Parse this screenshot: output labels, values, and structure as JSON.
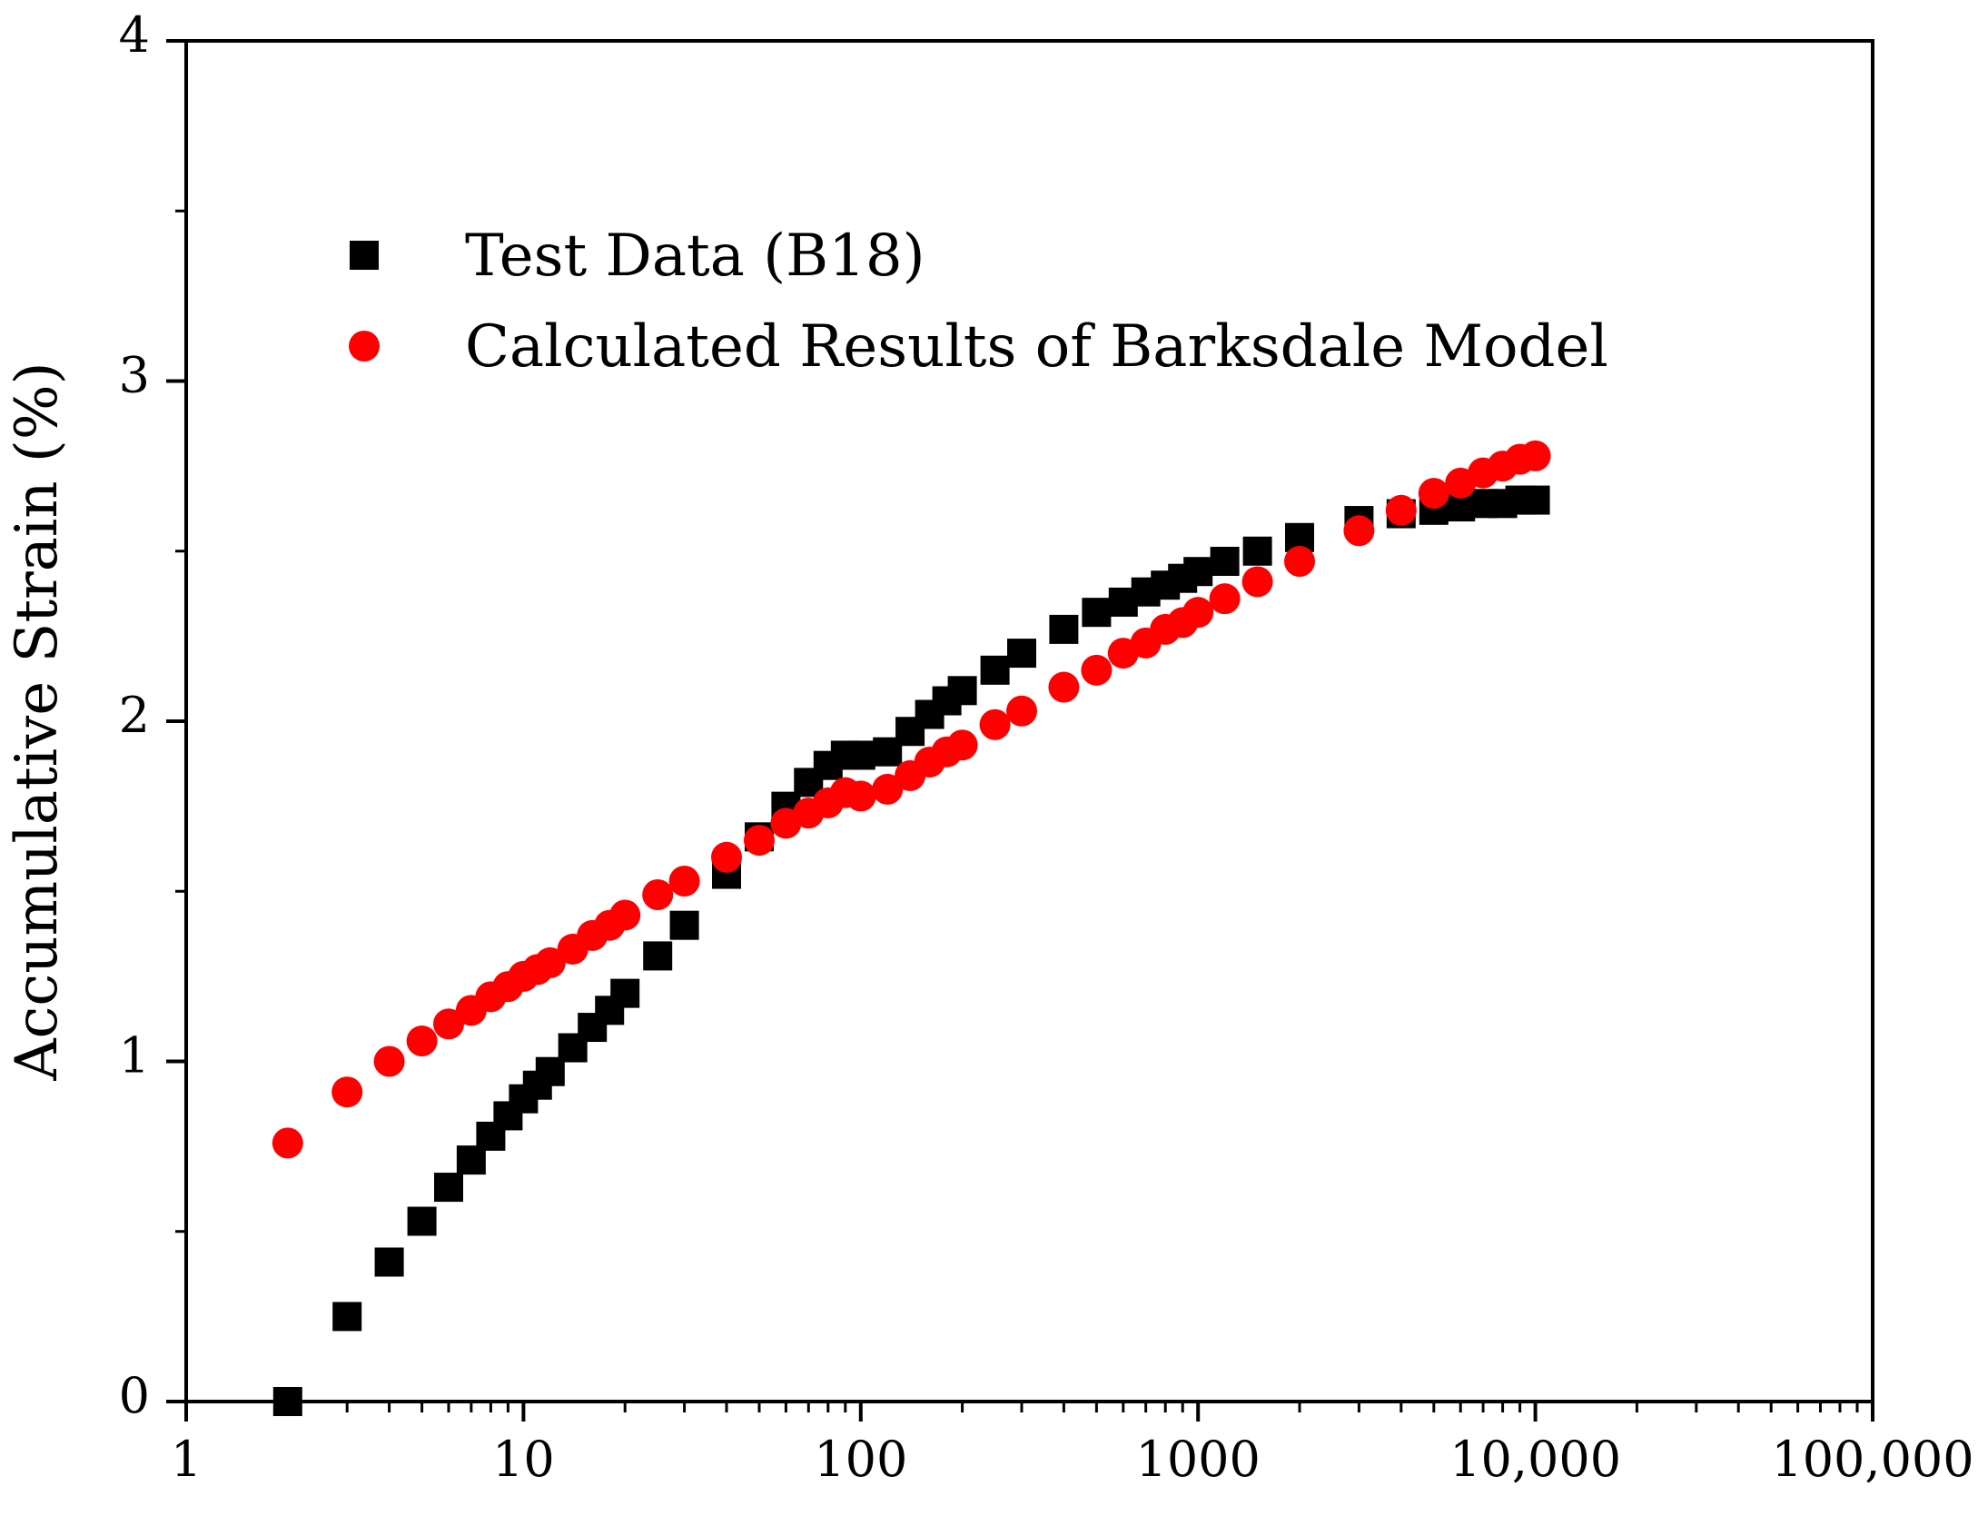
{
  "chart_data": {
    "type": "scatter",
    "ylabel": "Accumulative Strain (%)",
    "x_scale": "log",
    "xlim": [
      1,
      100000
    ],
    "ylim": [
      0,
      4
    ],
    "x_tick_values": [
      1,
      10,
      100,
      1000,
      10000,
      100000
    ],
    "x_tick_labels": [
      "1",
      "10",
      "100",
      "1000",
      "10,000",
      "100,000"
    ],
    "y_tick_values": [
      0,
      1,
      2,
      3,
      4
    ],
    "y_tick_labels": [
      "0",
      "1",
      "2",
      "3",
      "4"
    ],
    "grid": false,
    "legend_position": "top-left",
    "series": [
      {
        "name": "Test Data (B18)",
        "marker": "square",
        "color": "#000000",
        "x": [
          2,
          3,
          4,
          5,
          6,
          7,
          8,
          9,
          10,
          11,
          12,
          14,
          16,
          18,
          20,
          25,
          30,
          40,
          50,
          60,
          70,
          80,
          90,
          100,
          120,
          140,
          160,
          180,
          200,
          250,
          300,
          400,
          500,
          600,
          700,
          800,
          900,
          1000,
          1200,
          1500,
          2000,
          3000,
          4000,
          5000,
          6000,
          7000,
          8000,
          9000,
          10000
        ],
        "y": [
          0.0,
          0.25,
          0.41,
          0.53,
          0.63,
          0.71,
          0.78,
          0.84,
          0.89,
          0.93,
          0.97,
          1.04,
          1.1,
          1.15,
          1.2,
          1.31,
          1.4,
          1.55,
          1.66,
          1.75,
          1.82,
          1.87,
          1.9,
          1.9,
          1.91,
          1.97,
          2.02,
          2.06,
          2.09,
          2.15,
          2.2,
          2.27,
          2.32,
          2.35,
          2.38,
          2.4,
          2.42,
          2.44,
          2.47,
          2.5,
          2.54,
          2.59,
          2.61,
          2.62,
          2.63,
          2.64,
          2.64,
          2.65,
          2.65
        ]
      },
      {
        "name": "Calculated Results of Barksdale Model",
        "marker": "circle",
        "color": "#ff0000",
        "x": [
          2,
          3,
          4,
          5,
          6,
          7,
          8,
          9,
          10,
          11,
          12,
          14,
          16,
          18,
          20,
          25,
          30,
          40,
          50,
          60,
          70,
          80,
          90,
          100,
          120,
          140,
          160,
          180,
          200,
          250,
          300,
          400,
          500,
          600,
          700,
          800,
          900,
          1000,
          1200,
          1500,
          2000,
          3000,
          4000,
          5000,
          6000,
          7000,
          8000,
          9000,
          10000
        ],
        "y": [
          0.76,
          0.91,
          1.0,
          1.06,
          1.11,
          1.15,
          1.19,
          1.22,
          1.25,
          1.27,
          1.29,
          1.33,
          1.37,
          1.4,
          1.43,
          1.49,
          1.53,
          1.6,
          1.65,
          1.7,
          1.73,
          1.76,
          1.79,
          1.78,
          1.8,
          1.84,
          1.88,
          1.91,
          1.93,
          1.99,
          2.03,
          2.1,
          2.15,
          2.2,
          2.23,
          2.27,
          2.29,
          2.32,
          2.36,
          2.41,
          2.47,
          2.56,
          2.62,
          2.67,
          2.7,
          2.73,
          2.75,
          2.77,
          2.78
        ]
      }
    ]
  }
}
